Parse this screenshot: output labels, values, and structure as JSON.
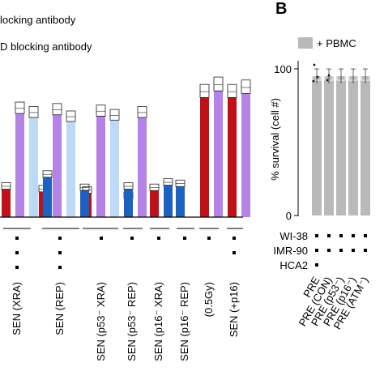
{
  "left_panel": {
    "legend": [
      {
        "label": "locking antibody"
      },
      {
        "label": "D blocking antibody"
      }
    ],
    "groups": [
      "SEN (XRA)",
      "SEN (REP)",
      "SEN (p53⁻ XRA)",
      "SEN (p53⁻ REP)",
      "SEN (p16⁻ XRA)",
      "SEN (p16⁻ REP)",
      "(0.5Gy)",
      "SEN (+p16)"
    ],
    "dots": [
      3,
      3,
      1,
      1,
      1,
      1,
      1,
      2
    ],
    "colors": {
      "red": "#c0101a",
      "purple": "#b583e8",
      "lightblue": "#bcd9f5",
      "blue": "#1c62c0"
    }
  },
  "chart_data": [
    {
      "type": "bar",
      "panel": "A (partial)",
      "categories": [
        "SEN (XRA)",
        "SEN (REP)",
        "SEN (p53⁻ XRA)",
        "SEN (p53⁻ REP)",
        "SEN (p16⁻ XRA)",
        "SEN (p16⁻ REP)",
        "(0.5Gy)",
        "SEN (+p16)"
      ],
      "ylim": [
        0,
        110
      ],
      "series": [
        {
          "name": "",
          "color": "#c0101a",
          "values": [
            21,
            19,
            18,
            14,
            20,
            null,
            90,
            90
          ]
        },
        {
          "name": "",
          "color": "#b583e8",
          "values": [
            78,
            77,
            76,
            75,
            null,
            null,
            95,
            93
          ]
        },
        {
          "name": "",
          "color": "#bcd9f5",
          "values": [
            75,
            72,
            73,
            null,
            null,
            null,
            null,
            null
          ]
        },
        {
          "name": "",
          "color": "#1c62c0",
          "values": [
            30,
            20,
            21,
            null,
            24,
            23,
            null,
            null
          ]
        }
      ]
    },
    {
      "type": "bar",
      "panel": "B",
      "panel_label": "B",
      "legend": [
        "+ PBMC"
      ],
      "ylabel": "% survival (cell #)",
      "yticks": [
        "0",
        "100"
      ],
      "ylim": [
        0,
        110
      ],
      "categories": [
        "PRE",
        "PRE (CON)",
        "PRE (p53⁻)",
        "PRE (p16⁻)",
        "PRE (ATM⁻)"
      ],
      "values": [
        95,
        95,
        95,
        95,
        95
      ],
      "color": "#b9b9b9",
      "row_labels": [
        "WI-38",
        "IMR-90",
        "HCA2"
      ],
      "dot_matrix": [
        [
          1,
          1,
          1,
          1,
          1
        ],
        [
          1,
          1,
          1,
          1,
          1
        ],
        [
          1,
          0,
          0,
          0,
          0
        ]
      ]
    }
  ]
}
